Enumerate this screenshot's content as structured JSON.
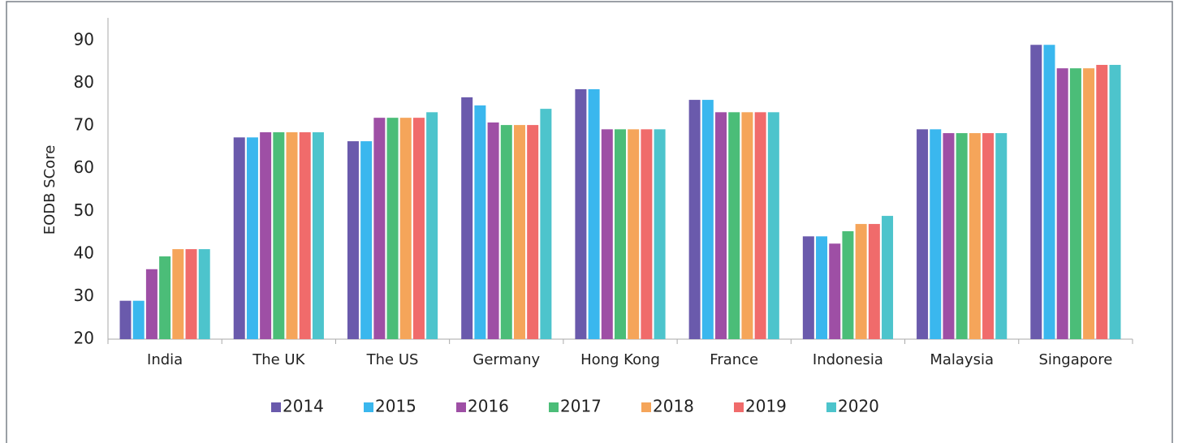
{
  "chart_data": {
    "type": "bar",
    "y_label": "EODB SCore",
    "categories": [
      "India",
      "The UK",
      "The US",
      "Germany",
      "Hong Kong",
      "France",
      "Indonesia",
      "Malaysia",
      "Singapore"
    ],
    "series": [
      {
        "name": "2014",
        "color": "#6a5aac",
        "values": [
          29,
          67.3,
          66.4,
          76.7,
          78.6,
          76.1,
          44.1,
          69.2,
          89.0
        ]
      },
      {
        "name": "2015",
        "color": "#3ab7ee",
        "values": [
          29,
          67.3,
          66.4,
          74.8,
          78.6,
          76.1,
          44.1,
          69.2,
          89.0
        ]
      },
      {
        "name": "2016",
        "color": "#9e4fa5",
        "values": [
          36.4,
          68.5,
          71.9,
          70.8,
          69.2,
          73.2,
          42.4,
          68.3,
          83.5
        ]
      },
      {
        "name": "2017",
        "color": "#4bbd78",
        "values": [
          39.4,
          68.5,
          71.9,
          70.2,
          69.2,
          73.2,
          45.3,
          68.3,
          83.5
        ]
      },
      {
        "name": "2018",
        "color": "#f5a55a",
        "values": [
          41.1,
          68.5,
          71.9,
          70.2,
          69.2,
          73.2,
          47.0,
          68.3,
          83.5
        ]
      },
      {
        "name": "2019",
        "color": "#f06b6b",
        "values": [
          41.1,
          68.5,
          71.9,
          70.2,
          69.2,
          73.2,
          47.0,
          68.3,
          84.3
        ]
      },
      {
        "name": "2020",
        "color": "#4dc4cc",
        "values": [
          41.1,
          68.5,
          73.2,
          74.0,
          69.2,
          73.2,
          48.9,
          68.3,
          84.3
        ]
      }
    ],
    "ylim": [
      20,
      90
    ],
    "yticks": [
      20,
      30,
      40,
      50,
      60,
      70,
      80,
      90
    ],
    "grid": false,
    "legend": "bottom"
  }
}
